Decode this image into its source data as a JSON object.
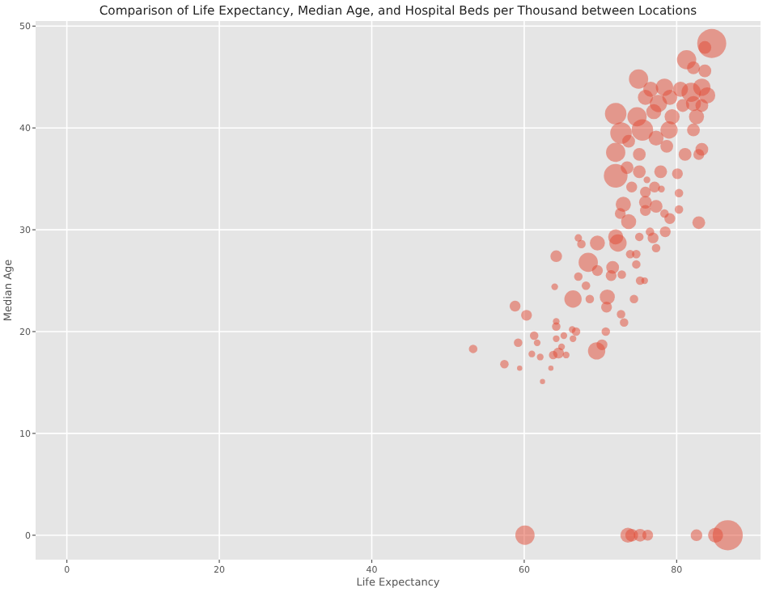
{
  "chart_data": {
    "type": "bubble",
    "title": "Comparison of Life Expectancy, Median Age, and Hospital Beds per Thousand between Locations",
    "xlabel": "Life Expectancy",
    "ylabel": "Median Age",
    "color": "#e24a33",
    "x": [
      60.1,
      73.6,
      74.1,
      75.2,
      76.2,
      82.6,
      85.1,
      86.7,
      84.6,
      83.7,
      81.3,
      82.2,
      83.7,
      75,
      76.6,
      78.4,
      80.5,
      81.9,
      83.3,
      84,
      79.1,
      77.6,
      75.9,
      82.2,
      80.8,
      83.3,
      72,
      74.8,
      77,
      79.4,
      82.6,
      72.7,
      75.5,
      77.3,
      79,
      82.2,
      73.7,
      78.7,
      83.3,
      72,
      75.1,
      81.1,
      82.9,
      72,
      73.5,
      75.1,
      77.9,
      80.1,
      74.1,
      76.1,
      77.1,
      75.9,
      80.3,
      78,
      73,
      75.9,
      77.3,
      75.9,
      72.6,
      78.4,
      80.3,
      73.7,
      79.1,
      82.9,
      72,
      75.1,
      76.5,
      76.9,
      78.5,
      67.1,
      69.6,
      72.3,
      67.5,
      77.3,
      73.9,
      74.7,
      64.2,
      68.4,
      74.7,
      71.6,
      69.6,
      72.8,
      71.4,
      67.1,
      75.2,
      75.8,
      68.1,
      64,
      70.9,
      66.4,
      68.6,
      74.4,
      70.8,
      58.8,
      60.3,
      72.7,
      73.1,
      64.2,
      64.2,
      66.3,
      66.8,
      70.7,
      65.2,
      61.3,
      66.4,
      64.2,
      61.7,
      59.2,
      70.2,
      69.5,
      64.9,
      53.3,
      64.5,
      63.8,
      61,
      62.1,
      65.5,
      57.4,
      59.4,
      63.5,
      62.4
    ],
    "values": [
      0,
      0,
      0,
      0,
      0,
      0,
      0,
      0,
      48.3,
      47.9,
      46.7,
      45.9,
      45.6,
      44.8,
      43.8,
      44,
      43.8,
      43.5,
      44,
      43.2,
      43,
      42.4,
      43,
      42.4,
      42.2,
      42.2,
      41.4,
      41.1,
      41.6,
      41.1,
      41.1,
      39.5,
      39.8,
      39,
      39.8,
      39.8,
      38.7,
      38.2,
      37.9,
      37.6,
      37.4,
      37.4,
      37.4,
      35.3,
      36.1,
      35.7,
      35.7,
      35.5,
      34.2,
      34.9,
      34.2,
      33.7,
      33.6,
      34,
      32.5,
      32.7,
      32.3,
      31.9,
      31.6,
      31.6,
      32,
      30.8,
      31.1,
      30.7,
      29.3,
      29.3,
      29.8,
      29.2,
      29.8,
      29.2,
      28.7,
      28.7,
      28.6,
      28.2,
      27.6,
      27.6,
      27.4,
      26.8,
      26.6,
      26.3,
      26,
      25.6,
      25.5,
      25.4,
      25,
      25,
      24.5,
      24.4,
      23.4,
      23.2,
      23.2,
      23.2,
      22.4,
      22.5,
      21.6,
      21.7,
      20.9,
      21,
      20.5,
      20.2,
      20,
      20,
      19.6,
      19.6,
      19.3,
      19.3,
      18.9,
      18.9,
      18.7,
      18.1,
      18.5,
      18.3,
      17.9,
      17.7,
      17.8,
      17.5,
      17.7,
      16.8,
      16.4,
      16.4,
      15.1
    ],
    "sizes": [
      0.41,
      0.25,
      0.18,
      0.18,
      0.13,
      0.15,
      0.25,
      1,
      0.93,
      0.18,
      0.41,
      0.18,
      0.18,
      0.41,
      0.25,
      0.33,
      0.25,
      0.41,
      0.33,
      0.29,
      0.25,
      0.33,
      0.25,
      0.25,
      0.18,
      0.18,
      0.51,
      0.41,
      0.25,
      0.25,
      0.25,
      0.51,
      0.51,
      0.25,
      0.33,
      0.18,
      0.18,
      0.18,
      0.18,
      0.41,
      0.18,
      0.18,
      0.13,
      0.62,
      0.18,
      0.18,
      0.18,
      0.13,
      0.13,
      0.05,
      0.13,
      0.13,
      0.08,
      0.05,
      0.25,
      0.18,
      0.18,
      0.13,
      0.13,
      0.08,
      0.08,
      0.25,
      0.13,
      0.18,
      0.25,
      0.08,
      0.08,
      0.13,
      0.13,
      0.06,
      0.25,
      0.33,
      0.08,
      0.08,
      0.08,
      0.08,
      0.15,
      0.41,
      0.08,
      0.18,
      0.13,
      0.08,
      0.13,
      0.08,
      0.08,
      0.05,
      0.08,
      0.05,
      0.25,
      0.33,
      0.08,
      0.08,
      0.13,
      0.13,
      0.13,
      0.08,
      0.08,
      0.05,
      0.08,
      0.05,
      0.08,
      0.08,
      0.05,
      0.08,
      0.05,
      0.05,
      0.05,
      0.08,
      0.13,
      0.33,
      0.05,
      0.08,
      0.13,
      0.08,
      0.05,
      0.05,
      0.05,
      0.08,
      0.03,
      0.03,
      0.03
    ],
    "xlim": [
      -4.1,
      91
    ],
    "ylim": [
      -2.4,
      50.5
    ],
    "xticks": [
      0,
      20,
      40,
      60,
      80
    ],
    "yticks": [
      0,
      10,
      20,
      30,
      40,
      50
    ],
    "grid": true,
    "marker": "circle"
  }
}
